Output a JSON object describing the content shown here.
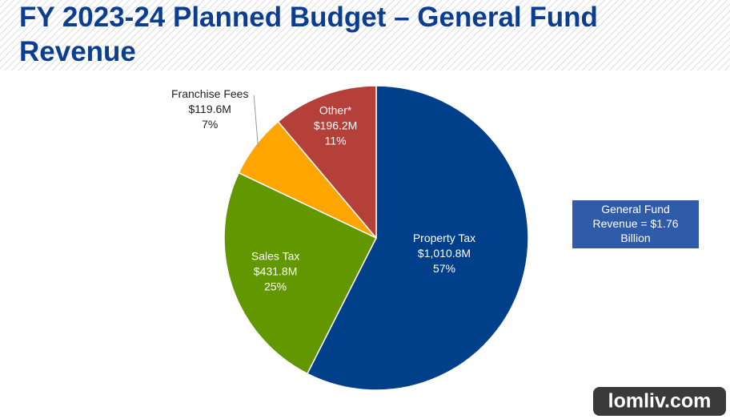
{
  "chart_data": {
    "type": "pie",
    "title": "FY 2023-24 Planned Budget – General Fund Revenue",
    "categories": [
      "Property Tax",
      "Sales Tax",
      "Franchise Fees",
      "Other*"
    ],
    "values": [
      1010.8,
      431.8,
      119.6,
      196.2
    ],
    "value_labels": [
      "$1,010.8M",
      "$431.8M",
      "$119.6M",
      "$196.2M"
    ],
    "percent_labels": [
      "57%",
      "25%",
      "7%",
      "11%"
    ],
    "colors": [
      "#003f8a",
      "#639700",
      "#ffa500",
      "#b5403a"
    ],
    "annotation": "General Fund Revenue = $1.76 Billion"
  },
  "watermark": "lomliv.com"
}
